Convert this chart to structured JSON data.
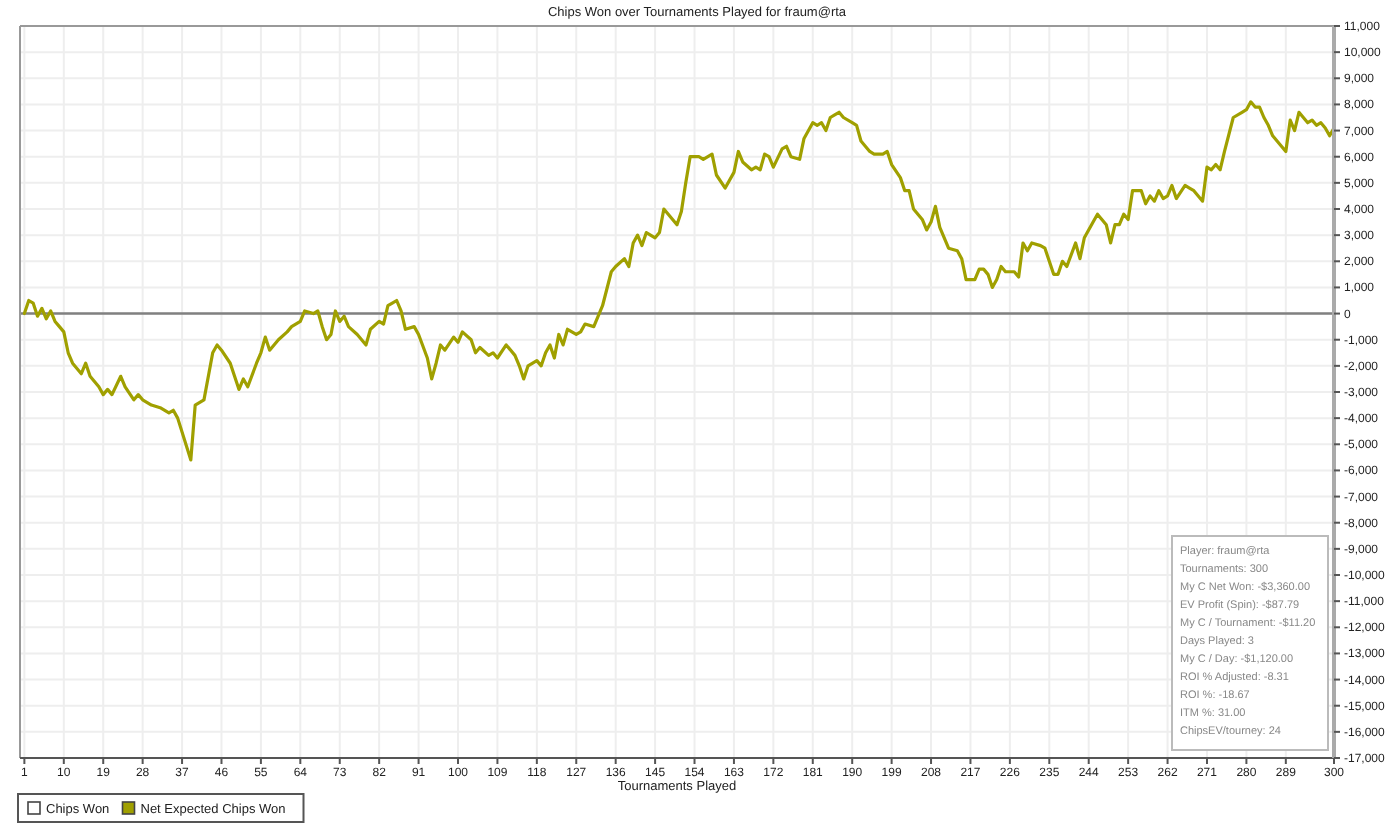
{
  "chart_data": {
    "type": "line",
    "title": "Chips Won over Tournaments Played for fraum@rta",
    "xlabel": "Tournaments Played",
    "xlim": [
      0,
      300
    ],
    "xticks": [
      1,
      10,
      19,
      28,
      37,
      46,
      55,
      64,
      73,
      82,
      91,
      100,
      109,
      118,
      127,
      136,
      145,
      154,
      163,
      172,
      181,
      190,
      199,
      208,
      217,
      226,
      235,
      244,
      253,
      262,
      271,
      280,
      289,
      300
    ],
    "ylim": [
      -17000,
      11000
    ],
    "yticks": [
      {
        "value": -17000,
        "label": "-17,000"
      },
      {
        "value": -16000,
        "label": "-16,000"
      },
      {
        "value": -15000,
        "label": "-15,000"
      },
      {
        "value": -14000,
        "label": "-14,000"
      },
      {
        "value": -13000,
        "label": "-13,000"
      },
      {
        "value": -12000,
        "label": "-12,000"
      },
      {
        "value": -11000,
        "label": "-11,000"
      },
      {
        "value": -10000,
        "label": "-10,000"
      },
      {
        "value": -9000,
        "label": "-9,000"
      },
      {
        "value": -8000,
        "label": "-8,000"
      },
      {
        "value": -7000,
        "label": "-7,000"
      },
      {
        "value": -6000,
        "label": "-6,000"
      },
      {
        "value": -5000,
        "label": "-5,000"
      },
      {
        "value": -4000,
        "label": "-4,000"
      },
      {
        "value": -3000,
        "label": "-3,000"
      },
      {
        "value": -2000,
        "label": "-2,000"
      },
      {
        "value": -1000,
        "label": "-1,000"
      },
      0,
      {
        "value": 1000,
        "label": "1,000"
      },
      {
        "value": 2000,
        "label": "2,000"
      },
      {
        "value": 3000,
        "label": "3,000"
      },
      {
        "value": 4000,
        "label": "4,000"
      },
      {
        "value": 5000,
        "label": "5,000"
      },
      {
        "value": 6000,
        "label": "6,000"
      },
      {
        "value": 7000,
        "label": "7,000"
      },
      {
        "value": 8000,
        "label": "8,000"
      },
      {
        "value": 9000,
        "label": "9,000"
      },
      {
        "value": 10000,
        "label": "10,000"
      },
      {
        "value": 11000,
        "label": "11,000"
      }
    ],
    "grid": true,
    "legend": "bottom left",
    "line_style": "solid",
    "ref_lines": [
      {
        "axis": "y",
        "value": 0,
        "color": "#808080"
      }
    ],
    "annotations": [
      "Player: fraum@rta",
      "Tournaments: 300",
      "My C Net Won: -$3,360.00",
      "EV Profit (Spin): -$87.79",
      "My C / Tournament: -$11.20",
      "Days Played: 3",
      "My C / Day: -$1,120.00",
      "ROI % Adjusted: -8.31",
      "ROI %: -18.67",
      "ITM %: 31.00",
      "ChipsEV/tourney: 24"
    ],
    "series": [
      {
        "name": "Chips Won",
        "color": "#ffffff"
      },
      {
        "name": "Net Expected Chips Won",
        "color": "#a0a000",
        "x": [
          1,
          2,
          3,
          4,
          5,
          6,
          7,
          8,
          9,
          10,
          11,
          12,
          14,
          15,
          16,
          18,
          19,
          20,
          21,
          23,
          24,
          26,
          27,
          28,
          30,
          32,
          34,
          35,
          36,
          39,
          40,
          42,
          44,
          45,
          46,
          48,
          50,
          51,
          52,
          54,
          55,
          56,
          57,
          59,
          61,
          62,
          64,
          65,
          67,
          68,
          69,
          70,
          71,
          72,
          73,
          74,
          75,
          77,
          79,
          80,
          82,
          83,
          84,
          85,
          86,
          87,
          88,
          90,
          91,
          93,
          94,
          95,
          96,
          97,
          99,
          100,
          101,
          103,
          104,
          105,
          107,
          108,
          109,
          111,
          113,
          114,
          115,
          116,
          118,
          119,
          120,
          121,
          122,
          123,
          124,
          125,
          127,
          128,
          129,
          131,
          133,
          135,
          136,
          138,
          139,
          140,
          141,
          142,
          143,
          145,
          146,
          147,
          149,
          150,
          151,
          152,
          153,
          155,
          156,
          158,
          159,
          161,
          163,
          164,
          165,
          167,
          168,
          169,
          170,
          171,
          172,
          174,
          175,
          176,
          178,
          179,
          181,
          182,
          183,
          184,
          185,
          186,
          187,
          188,
          190,
          191,
          192,
          194,
          195,
          197,
          198,
          199,
          201,
          202,
          203,
          204,
          206,
          207,
          208,
          209,
          210,
          212,
          214,
          215,
          216,
          218,
          219,
          220,
          221,
          222,
          223,
          224,
          225,
          227,
          228,
          229,
          230,
          231,
          233,
          234,
          235,
          236,
          237,
          238,
          239,
          241,
          242,
          243,
          245,
          246,
          247,
          248,
          249,
          250,
          251,
          252,
          253,
          254,
          256,
          257,
          258,
          259,
          260,
          261,
          262,
          263,
          264,
          266,
          267,
          268,
          270,
          271,
          272,
          273,
          274,
          275,
          277,
          279,
          280,
          281,
          282,
          283,
          284,
          285,
          286,
          288,
          289,
          290,
          291,
          292,
          293,
          294,
          295,
          296,
          297,
          298,
          299,
          300
        ],
        "values": [
          0,
          500,
          400,
          -100,
          200,
          -200,
          100,
          -300,
          -500,
          -700,
          -1500,
          -1900,
          -2300,
          -1900,
          -2400,
          -2800,
          -3100,
          -2900,
          -3100,
          -2400,
          -2800,
          -3300,
          -3100,
          -3300,
          -3500,
          -3600,
          -3800,
          -3700,
          -4000,
          -5600,
          -3500,
          -3300,
          -1500,
          -1200,
          -1400,
          -1900,
          -2900,
          -2500,
          -2800,
          -1900,
          -1500,
          -900,
          -1400,
          -1000,
          -700,
          -500,
          -300,
          100,
          0,
          100,
          -500,
          -1000,
          -800,
          100,
          -300,
          -100,
          -500,
          -800,
          -1200,
          -600,
          -300,
          -400,
          300,
          400,
          500,
          100,
          -600,
          -500,
          -800,
          -1700,
          -2500,
          -1900,
          -1200,
          -1400,
          -900,
          -1100,
          -700,
          -1000,
          -1500,
          -1300,
          -1600,
          -1500,
          -1700,
          -1200,
          -1600,
          -2000,
          -2500,
          -2000,
          -1800,
          -2000,
          -1500,
          -1200,
          -1700,
          -800,
          -1200,
          -600,
          -800,
          -700,
          -400,
          -500,
          300,
          1600,
          1800,
          2100,
          1800,
          2700,
          3000,
          2600,
          3100,
          2900,
          3100,
          4000,
          3600,
          3400,
          3900,
          5000,
          6000,
          6000,
          5900,
          6100,
          5300,
          4800,
          5400,
          6200,
          5800,
          5500,
          5600,
          5500,
          6100,
          6000,
          5600,
          6300,
          6400,
          6000,
          5900,
          6700,
          7300,
          7200,
          7300,
          7000,
          7500,
          7600,
          7700,
          7500,
          7300,
          7200,
          6600,
          6200,
          6100,
          6100,
          6200,
          5700,
          5200,
          4700,
          4700,
          4000,
          3600,
          3200,
          3500,
          4100,
          3300,
          2500,
          2400,
          2100,
          1300,
          1300,
          1700,
          1700,
          1500,
          1000,
          1300,
          1800,
          1600,
          1600,
          1400,
          2700,
          2400,
          2700,
          2600,
          2500,
          2000,
          1500,
          1500,
          2000,
          1800,
          2700,
          2100,
          2900,
          3500,
          3800,
          3600,
          3400,
          2700,
          3400,
          3400,
          3800,
          3600,
          4700,
          4700,
          4200,
          4500,
          4300,
          4700,
          4400,
          4500,
          4900,
          4400,
          4900,
          4800,
          4700,
          4300,
          5600,
          5500,
          5700,
          5500,
          6200,
          7500,
          7700,
          7800,
          8100,
          7900,
          7900,
          7500,
          7200,
          6800,
          6400,
          6200,
          7400,
          7000,
          7700,
          7500,
          7300,
          7400,
          7200,
          7300,
          7100,
          6800,
          7100
        ]
      }
    ]
  }
}
